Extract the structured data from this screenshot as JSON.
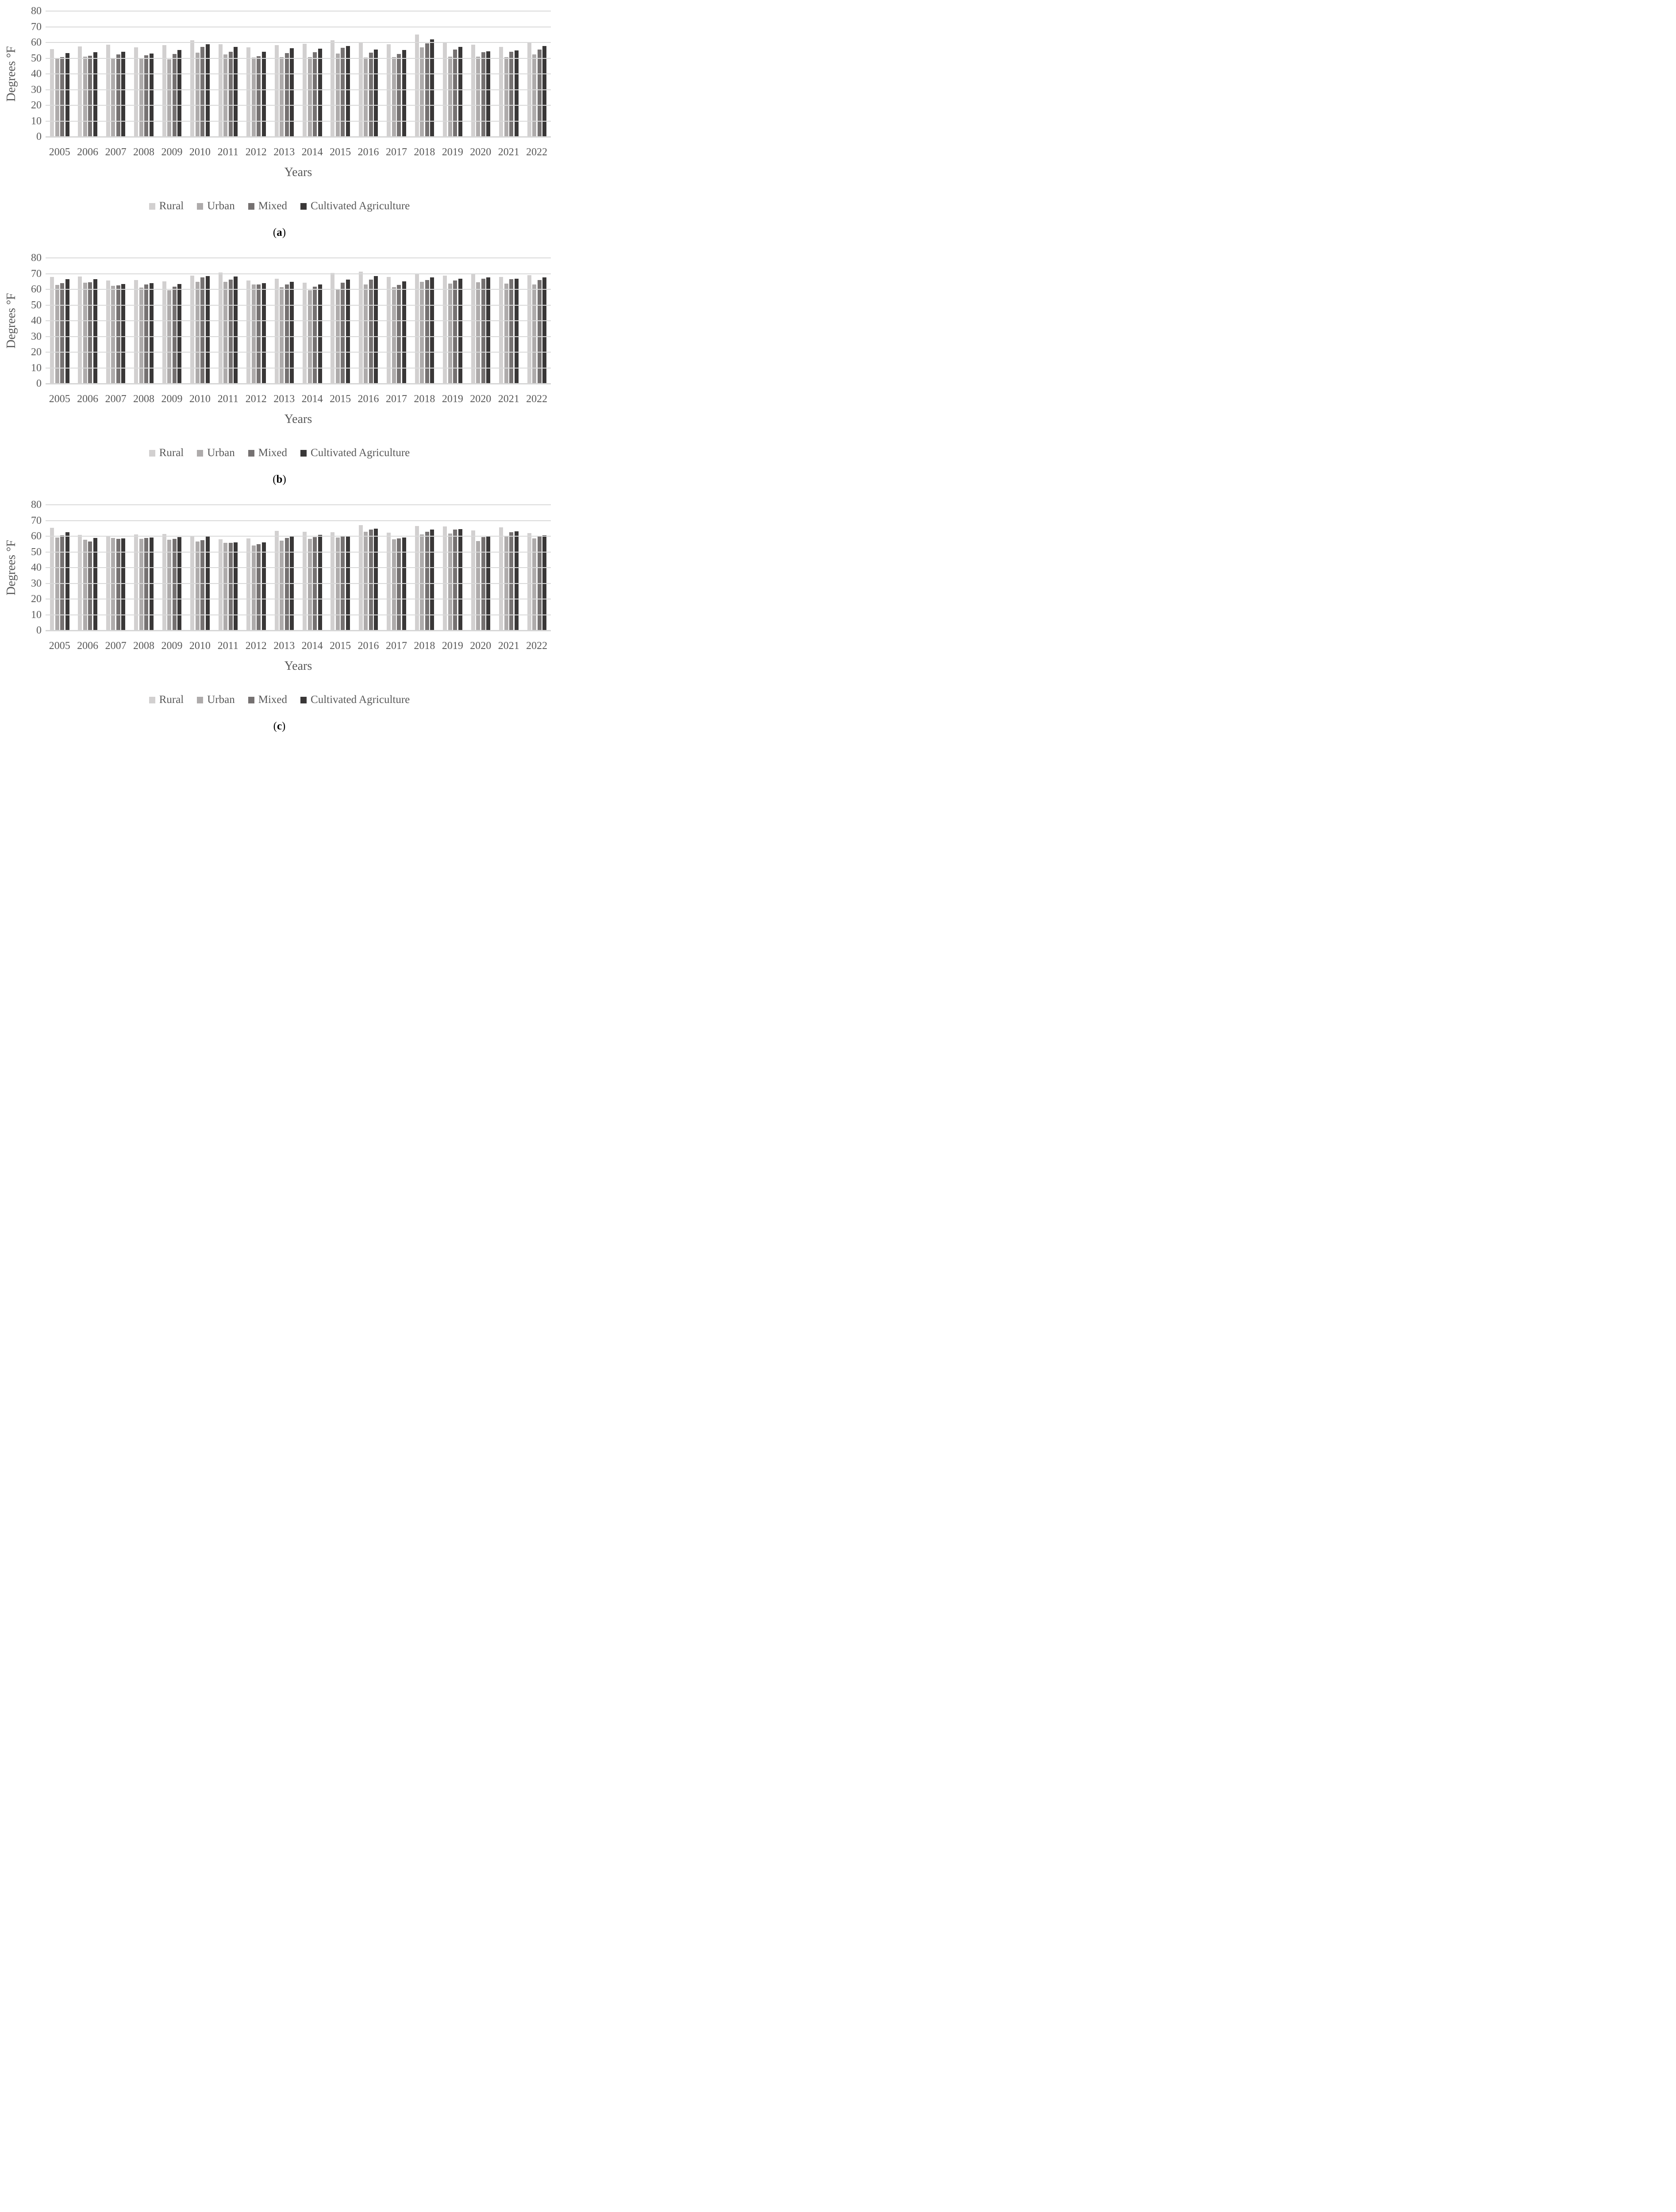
{
  "page": {
    "background": "#ffffff"
  },
  "colors": {
    "rural": "#d2d0d0",
    "urban": "#aeabab",
    "mixed": "#757171",
    "cultivated_agriculture": "#393737",
    "gridline": "#d9d9d9",
    "axis_text": "#595959"
  },
  "chart_data": [
    {
      "type": "bar",
      "caption": {
        "open": "(",
        "letter": "a",
        "close": ")"
      },
      "ylabel": "Degrees °F",
      "xlabel": "Years",
      "ylim": [
        0,
        80
      ],
      "yticks": [
        0,
        10,
        20,
        30,
        40,
        50,
        60,
        70,
        80
      ],
      "grid": "horizontal",
      "legend_position": "bottom",
      "years": [
        "2005",
        "2006",
        "2007",
        "2008",
        "2009",
        "2010",
        "2011",
        "2012",
        "2013",
        "2014",
        "2015",
        "2016",
        "2017",
        "2018",
        "2019",
        "2020",
        "2021",
        "2022"
      ],
      "series": [
        {
          "name": "Rural",
          "color": "#d2d0d0",
          "values": [
            55.9,
            57.5,
            58.7,
            56.9,
            58.3,
            61.4,
            59.0,
            56.8,
            58.4,
            59.2,
            61.4,
            59.6,
            59.0,
            65.1,
            59.9,
            58.6,
            57.2,
            59.8
          ]
        },
        {
          "name": "Urban",
          "color": "#aeabab",
          "values": [
            50.1,
            50.9,
            50.0,
            50.2,
            49.3,
            53.5,
            52.3,
            50.4,
            50.8,
            50.8,
            53.0,
            50.5,
            50.6,
            56.8,
            51.1,
            51.0,
            50.6,
            52.5
          ]
        },
        {
          "name": "Mixed",
          "color": "#757171",
          "values": [
            50.7,
            51.5,
            52.4,
            51.9,
            52.8,
            57.1,
            54.0,
            51.4,
            53.2,
            53.8,
            56.7,
            53.4,
            52.6,
            59.5,
            55.4,
            53.7,
            54.0,
            55.6
          ]
        },
        {
          "name": "Cultivated Agriculture",
          "color": "#393737",
          "values": [
            53.2,
            53.8,
            54.2,
            52.9,
            55.2,
            59.0,
            57.1,
            54.1,
            56.3,
            56.2,
            57.8,
            55.4,
            55.1,
            62.0,
            57.2,
            54.4,
            54.9,
            57.7
          ]
        }
      ]
    },
    {
      "type": "bar",
      "caption": {
        "open": "(",
        "letter": "b",
        "close": ")"
      },
      "ylabel": "Degrees °F",
      "xlabel": "Years",
      "ylim": [
        0,
        80
      ],
      "yticks": [
        0,
        10,
        20,
        30,
        40,
        50,
        60,
        70,
        80
      ],
      "grid": "horizontal",
      "legend_position": "bottom",
      "years": [
        "2005",
        "2006",
        "2007",
        "2008",
        "2009",
        "2010",
        "2011",
        "2012",
        "2013",
        "2014",
        "2015",
        "2016",
        "2017",
        "2018",
        "2019",
        "2020",
        "2021",
        "2022"
      ],
      "series": [
        {
          "name": "Rural",
          "color": "#d2d0d0",
          "values": [
            67.9,
            68.1,
            65.6,
            65.9,
            65.1,
            68.6,
            70.6,
            65.5,
            66.9,
            64.2,
            70.4,
            71.4,
            67.8,
            70.0,
            68.8,
            70.0,
            68.0,
            68.9
          ]
        },
        {
          "name": "Urban",
          "color": "#aeabab",
          "values": [
            62.8,
            64.2,
            62.3,
            61.1,
            59.5,
            64.7,
            64.9,
            63.0,
            61.5,
            59.5,
            60.3,
            63.0,
            61.3,
            64.8,
            63.8,
            64.6,
            63.7,
            63.1
          ]
        },
        {
          "name": "Mixed",
          "color": "#757171",
          "values": [
            63.9,
            64.6,
            62.6,
            63.2,
            61.8,
            67.5,
            66.1,
            63.2,
            63.1,
            61.8,
            64.1,
            66.1,
            62.8,
            65.9,
            65.7,
            66.9,
            66.5,
            65.8
          ]
        },
        {
          "name": "Cultivated Agriculture",
          "color": "#393737",
          "values": [
            66.6,
            66.4,
            63.5,
            63.9,
            63.4,
            68.5,
            68.3,
            64.0,
            64.8,
            63.0,
            66.1,
            68.4,
            65.0,
            67.5,
            66.9,
            67.5,
            66.9,
            67.5
          ]
        }
      ]
    },
    {
      "type": "bar",
      "caption": {
        "open": "(",
        "letter": "c",
        "close": ")"
      },
      "ylabel": "Degrees °F",
      "xlabel": "Years",
      "ylim": [
        0,
        80
      ],
      "yticks": [
        0,
        10,
        20,
        30,
        40,
        50,
        60,
        70,
        80
      ],
      "grid": "horizontal",
      "legend_position": "bottom",
      "years": [
        "2005",
        "2006",
        "2007",
        "2008",
        "2009",
        "2010",
        "2011",
        "2012",
        "2013",
        "2014",
        "2015",
        "2016",
        "2017",
        "2018",
        "2019",
        "2020",
        "2021",
        "2022"
      ],
      "series": [
        {
          "name": "Rural",
          "color": "#d2d0d0",
          "values": [
            65.3,
            60.9,
            60.0,
            61.0,
            61.3,
            60.0,
            58.0,
            58.5,
            63.4,
            62.7,
            62.5,
            67.0,
            62.3,
            66.5,
            66.1,
            63.7,
            65.6,
            62.1
          ]
        },
        {
          "name": "Urban",
          "color": "#aeabab",
          "values": [
            59.3,
            57.8,
            58.9,
            58.3,
            57.7,
            56.7,
            55.8,
            54.0,
            57.3,
            58.2,
            59.2,
            62.9,
            58.1,
            61.1,
            61.8,
            57.0,
            60.3,
            58.5
          ]
        },
        {
          "name": "Mixed",
          "color": "#757171",
          "values": [
            60.6,
            56.6,
            58.2,
            59.0,
            58.2,
            57.4,
            55.8,
            54.9,
            59.0,
            59.4,
            60.2,
            64.1,
            58.5,
            62.9,
            64.1,
            59.5,
            62.6,
            59.9
          ]
        },
        {
          "name": "Cultivated Agriculture",
          "color": "#393737",
          "values": [
            62.5,
            58.9,
            58.7,
            59.2,
            59.5,
            59.8,
            56.2,
            56.1,
            60.3,
            60.9,
            60.1,
            64.9,
            59.3,
            64.1,
            64.4,
            60.1,
            63.1,
            60.6
          ]
        }
      ]
    }
  ]
}
